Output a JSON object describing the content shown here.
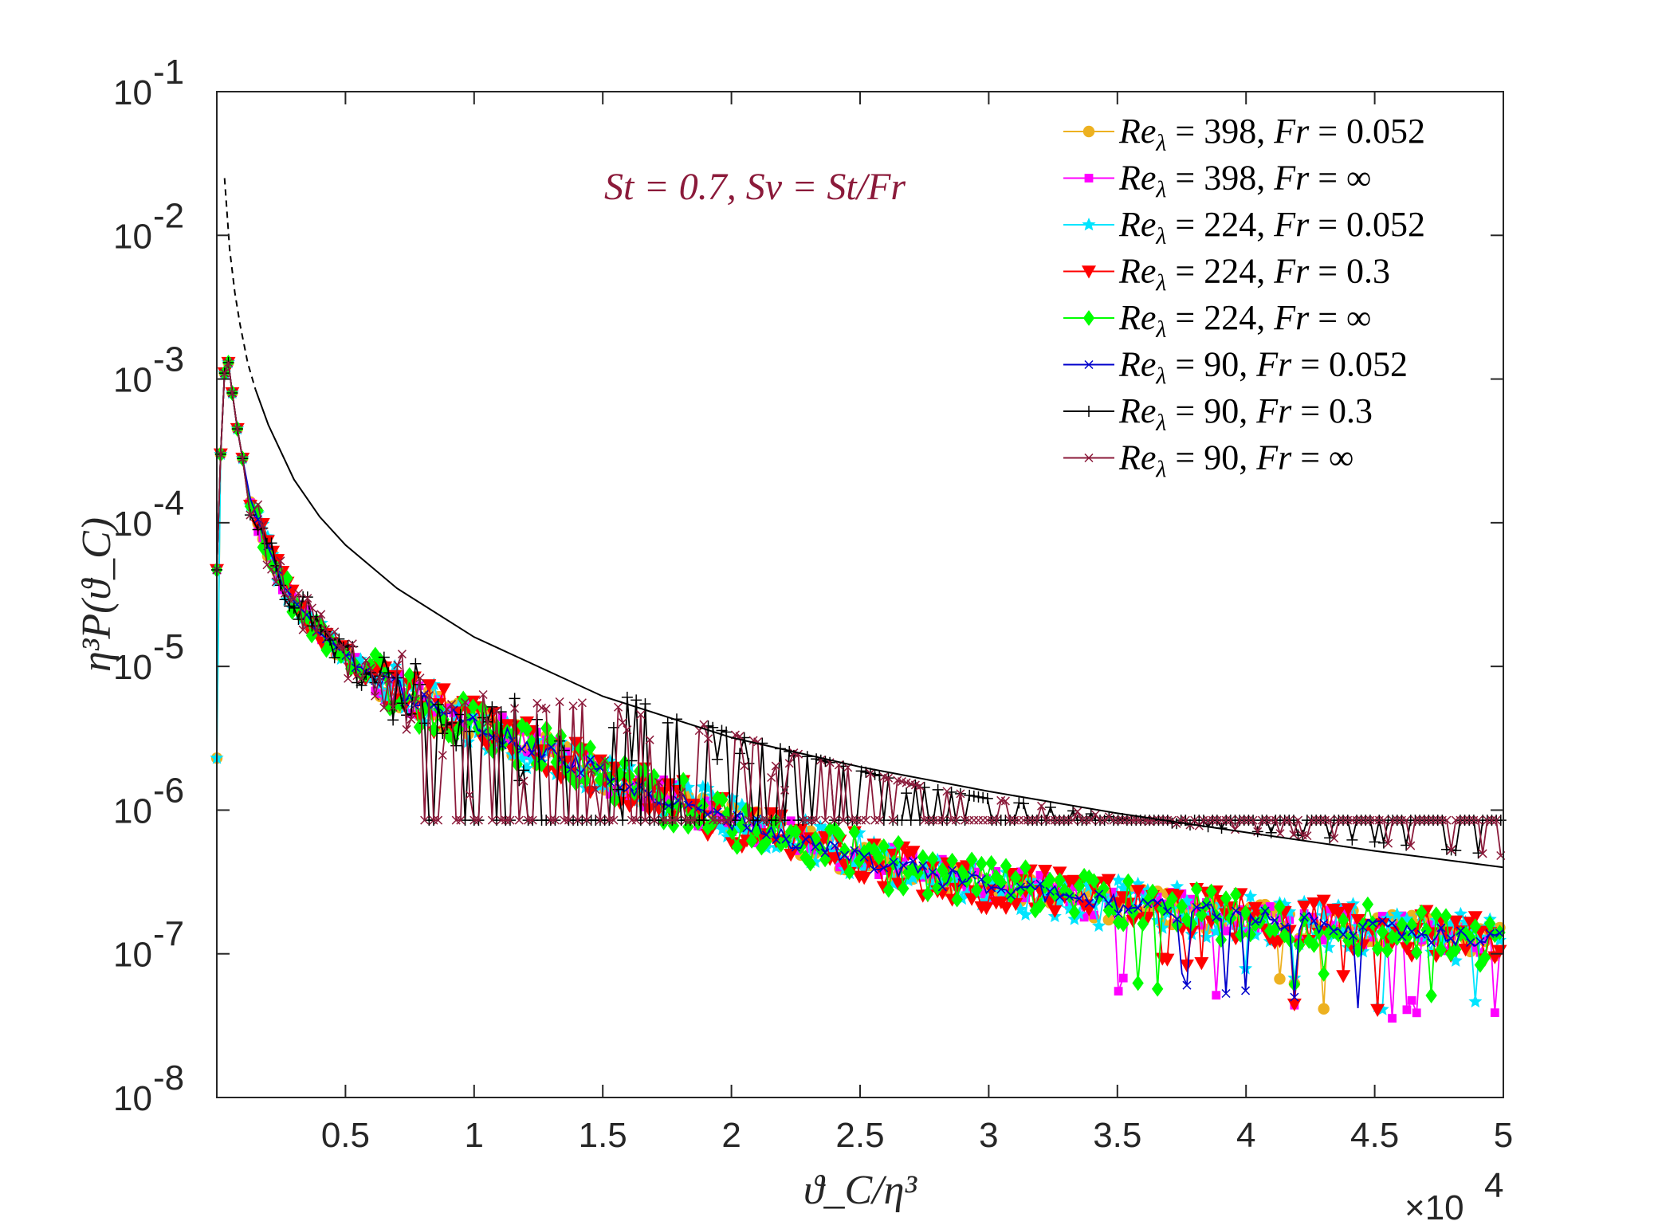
{
  "chart_data": {
    "type": "line",
    "title": "",
    "annotation": "St = 0.7, Sv = St/Fr",
    "annotation_color": "#8b1a3a",
    "xlabel": "ϑ_C/η³",
    "ylabel": "η³P(ϑ_C)",
    "x_multiplier_label": "×10",
    "x_multiplier_exp": "4",
    "xlim": [
      0,
      50000
    ],
    "ylim": [
      1e-08,
      0.1
    ],
    "yscale": "log",
    "grid": false,
    "legend_position": "top-right",
    "x_ticks": [
      {
        "value": 5000,
        "label": "0.5"
      },
      {
        "value": 10000,
        "label": "1"
      },
      {
        "value": 15000,
        "label": "1.5"
      },
      {
        "value": 20000,
        "label": "2"
      },
      {
        "value": 25000,
        "label": "2.5"
      },
      {
        "value": 30000,
        "label": "3"
      },
      {
        "value": 35000,
        "label": "3.5"
      },
      {
        "value": 40000,
        "label": "4"
      },
      {
        "value": 45000,
        "label": "4.5"
      },
      {
        "value": 50000,
        "label": "5"
      }
    ],
    "y_ticks": [
      {
        "value": 1e-08,
        "exp": "-8"
      },
      {
        "value": 1e-07,
        "exp": "-7"
      },
      {
        "value": 1e-06,
        "exp": "-6"
      },
      {
        "value": 1e-05,
        "exp": "-5"
      },
      {
        "value": 0.0001,
        "exp": "-4"
      },
      {
        "value": 0.001,
        "exp": "-3"
      },
      {
        "value": 0.01,
        "exp": "-2"
      },
      {
        "value": 0.1,
        "exp": "-1"
      }
    ],
    "y_tick_base": "10",
    "reference_curve": {
      "description": "black line, dashed for small x",
      "x": [
        300,
        500,
        700,
        900,
        1200,
        1500,
        2000,
        3000,
        4000,
        5000,
        7000,
        10000,
        15000,
        20000,
        25000,
        30000,
        35000,
        40000,
        45000,
        50000
      ],
      "y": [
        0.025,
        0.008,
        0.004,
        0.0024,
        0.0013,
        0.00085,
        0.00048,
        0.0002,
        0.00011,
        7e-05,
        3.5e-05,
        1.6e-05,
        6.2e-06,
        3.2e-06,
        2e-06,
        1.35e-06,
        9.5e-07,
        7e-07,
        5.2e-07,
        4e-07
      ]
    },
    "series": [
      {
        "name": "Re_λ = 398, Fr = 0.052",
        "legend": [
          "Re",
          "λ",
          " = 398, ",
          "Fr",
          " = 0.052"
        ],
        "color": "#edb120",
        "marker": "circle",
        "spread": 0.12,
        "seed": 11,
        "plus_floor": false
      },
      {
        "name": "Re_λ = 398, Fr = ∞",
        "legend": [
          "Re",
          "λ",
          " = 398, ",
          "Fr",
          " = ∞"
        ],
        "color": "#ff00ff",
        "marker": "square",
        "spread": 0.13,
        "seed": 23,
        "plus_floor": false
      },
      {
        "name": "Re_λ = 224, Fr = 0.052",
        "legend": [
          "Re",
          "λ",
          " = 224, ",
          "Fr",
          " = 0.052"
        ],
        "color": "#00e5ff",
        "marker": "star",
        "spread": 0.17,
        "seed": 37,
        "plus_floor": false
      },
      {
        "name": "Re_λ = 224, Fr = 0.3",
        "legend": [
          "Re",
          "λ",
          " = 224, ",
          "Fr",
          " = 0.3"
        ],
        "color": "#ff0000",
        "marker": "triangle-down",
        "spread": 0.17,
        "seed": 41,
        "plus_floor": false
      },
      {
        "name": "Re_λ = 224, Fr = ∞",
        "legend": [
          "Re",
          "λ",
          " = 224, ",
          "Fr",
          " = ∞"
        ],
        "color": "#00ff00",
        "marker": "diamond",
        "spread": 0.18,
        "seed": 53,
        "plus_floor": false
      },
      {
        "name": "Re_λ = 90, Fr = 0.052",
        "legend": [
          "Re",
          "λ",
          " = 90, ",
          "Fr",
          " = 0.052"
        ],
        "color": "#0000cc",
        "marker": "x",
        "spread": 0.07,
        "seed": 67,
        "plus_floor": false
      },
      {
        "name": "Re_λ = 90, Fr = 0.3",
        "legend": [
          "Re",
          "λ",
          " = 90, ",
          "Fr",
          " = 0.3"
        ],
        "color": "#000000",
        "marker": "plus",
        "spread": 0.3,
        "seed": 71,
        "plus_floor": true
      },
      {
        "name": "Re_λ = 90, Fr = ∞",
        "legend": [
          "Re",
          "λ",
          " = 90, ",
          "Fr",
          " = ∞"
        ],
        "color": "#8b1a3a",
        "marker": "x",
        "spread": 0.3,
        "seed": 83,
        "plus_floor": true
      }
    ],
    "mean_curve": {
      "x": [
        0,
        150,
        300,
        450,
        600,
        800,
        1000,
        1300,
        1600,
        2000,
        2500,
        3000,
        4000,
        5000,
        6000,
        8000,
        10000,
        12500,
        15000,
        17500,
        20000,
        22500,
        25000,
        27500,
        30000,
        32500,
        35000,
        37500,
        40000,
        42500,
        45000,
        47500,
        50000
      ],
      "y": [
        2.5e-05,
        0.0003,
        0.0011,
        0.0013,
        0.0008,
        0.00045,
        0.00028,
        0.00016,
        0.0001,
        6.5e-05,
        4e-05,
        2.8e-05,
        1.7e-05,
        1.2e-05,
        8.8e-06,
        5.5e-06,
        3.9e-06,
        2.7e-06,
        1.8e-06,
        1.2e-06,
        8.5e-07,
        6.2e-07,
        4.7e-07,
        3.6e-07,
        3e-07,
        2.6e-07,
        2.2e-07,
        2e-07,
        1.8e-07,
        1.65e-07,
        1.5e-07,
        1.35e-07,
        1.2e-07
      ]
    },
    "floor_value": 8.5e-07
  }
}
